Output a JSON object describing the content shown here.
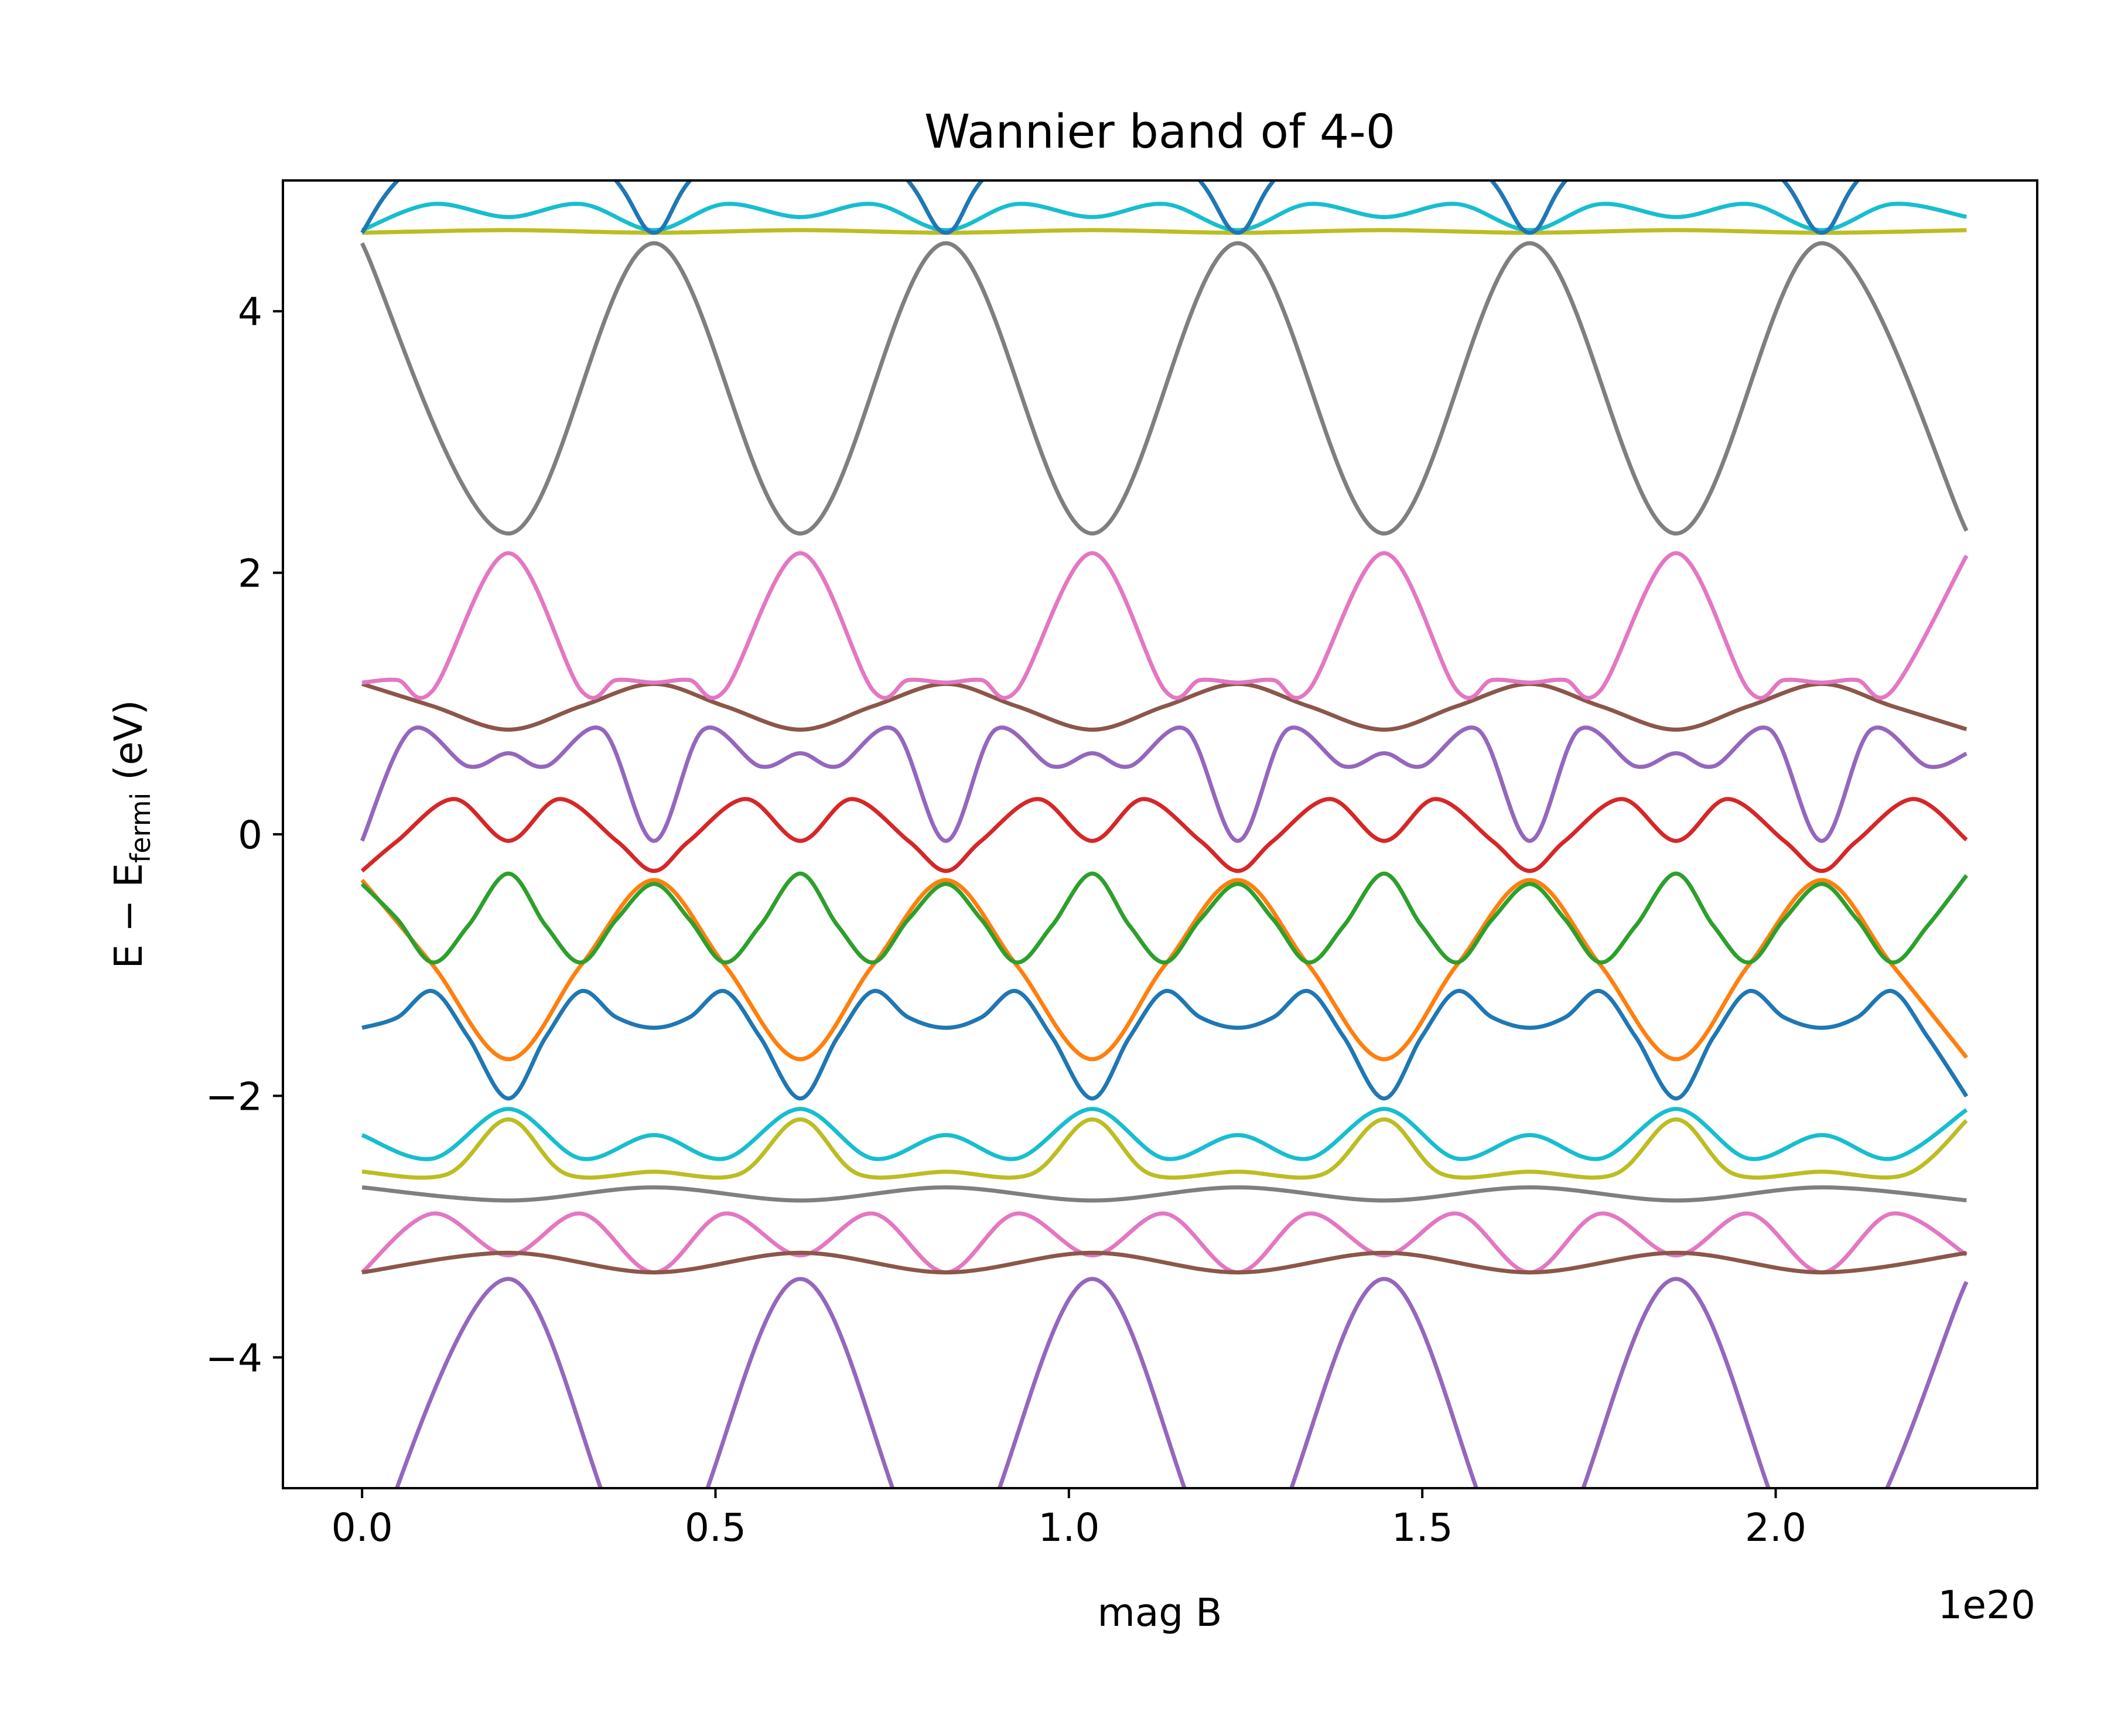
{
  "chart_data": {
    "type": "line",
    "title": "Wannier band of 4-0",
    "xlabel": "mag  B",
    "ylabel": "E − E_fermi (eV)",
    "ylabel_parts": {
      "prefix": "E − E",
      "subscript": "fermi",
      "suffix": " (eV)"
    },
    "x_offset_text": "1e20",
    "xlim": [
      -0.112,
      2.37
    ],
    "ylim": [
      -5,
      5
    ],
    "x_ticks": [
      0.0,
      0.5,
      1.0,
      1.5,
      2.0
    ],
    "x_tick_labels": [
      "0.0",
      "0.5",
      "1.0",
      "1.5",
      "2.0"
    ],
    "y_ticks": [
      -4,
      -2,
      0,
      2,
      4
    ],
    "y_tick_labels": [
      "−4",
      "−2",
      "0",
      "2",
      "4"
    ],
    "grid": false,
    "legend": "none",
    "x_range": [
      0,
      2.27
    ],
    "period": 0.413,
    "colors": {
      "blue": "#1f77b4",
      "orange": "#ff7f0e",
      "green": "#2ca02c",
      "red": "#d62728",
      "purple": "#9467bd",
      "brown": "#8c564b",
      "pink": "#e377c2",
      "gray": "#7f7f7f",
      "olive": "#bcbd22",
      "cyan": "#17becf"
    },
    "series": [
      {
        "color": "#1f77b4",
        "points": [
          [
            0.0,
            -1.48
          ],
          [
            0.05,
            -1.4
          ],
          [
            0.1,
            -1.2
          ],
          [
            0.15,
            -1.55
          ],
          [
            0.207,
            -2.02
          ],
          [
            0.26,
            -1.55
          ],
          [
            0.31,
            -1.2
          ],
          [
            0.36,
            -1.4
          ],
          [
            0.413,
            -1.48
          ]
        ]
      },
      {
        "color": "#ff7f0e",
        "points": [
          [
            0.0,
            -0.35
          ],
          [
            0.1,
            -1.0
          ],
          [
            0.207,
            -1.72
          ],
          [
            0.31,
            -1.0
          ],
          [
            0.413,
            -0.35
          ]
        ]
      },
      {
        "color": "#2ca02c",
        "points": [
          [
            0.0,
            -0.38
          ],
          [
            0.05,
            -0.65
          ],
          [
            0.1,
            -0.98
          ],
          [
            0.15,
            -0.7
          ],
          [
            0.207,
            -0.3
          ],
          [
            0.26,
            -0.7
          ],
          [
            0.31,
            -0.98
          ],
          [
            0.36,
            -0.65
          ],
          [
            0.413,
            -0.38
          ]
        ]
      },
      {
        "color": "#d62728",
        "points": [
          [
            0.0,
            -0.28
          ],
          [
            0.05,
            -0.05
          ],
          [
            0.13,
            0.27
          ],
          [
            0.207,
            -0.05
          ],
          [
            0.28,
            0.27
          ],
          [
            0.36,
            -0.05
          ],
          [
            0.413,
            -0.28
          ]
        ]
      },
      {
        "color": "#9467bd",
        "points": [
          [
            0.0,
            -0.05
          ],
          [
            0.07,
            0.8
          ],
          [
            0.15,
            0.52
          ],
          [
            0.207,
            0.62
          ],
          [
            0.26,
            0.52
          ],
          [
            0.34,
            0.8
          ],
          [
            0.413,
            -0.05
          ]
        ]
      },
      {
        "color": "#8c564b",
        "points": [
          [
            0.0,
            1.15
          ],
          [
            0.1,
            0.98
          ],
          [
            0.207,
            0.8
          ],
          [
            0.31,
            0.98
          ],
          [
            0.413,
            1.15
          ]
        ]
      },
      {
        "color": "#e377c2",
        "points": [
          [
            0.0,
            1.16
          ],
          [
            0.05,
            1.18
          ],
          [
            0.1,
            1.1
          ],
          [
            0.207,
            2.15
          ],
          [
            0.31,
            1.1
          ],
          [
            0.36,
            1.18
          ],
          [
            0.413,
            1.16
          ]
        ]
      },
      {
        "color": "#7f7f7f",
        "points": [
          [
            0.0,
            4.52
          ],
          [
            0.207,
            2.3
          ],
          [
            0.413,
            4.52
          ]
        ]
      },
      {
        "color": "#bcbd22",
        "points": [
          [
            0.0,
            4.6
          ],
          [
            0.207,
            4.62
          ],
          [
            0.413,
            4.6
          ]
        ]
      },
      {
        "color": "#17becf",
        "points": [
          [
            0.0,
            4.62
          ],
          [
            0.1,
            4.82
          ],
          [
            0.207,
            4.72
          ],
          [
            0.31,
            4.82
          ],
          [
            0.413,
            4.62
          ]
        ]
      },
      {
        "color": "#1f77b4",
        "points": [
          [
            0.0,
            4.6
          ],
          [
            0.06,
            5.05
          ],
          [
            0.207,
            5.6
          ],
          [
            0.35,
            5.05
          ],
          [
            0.413,
            4.6
          ]
        ]
      },
      {
        "color": "#17becf",
        "points": [
          [
            0.0,
            -2.3
          ],
          [
            0.1,
            -2.48
          ],
          [
            0.207,
            -2.1
          ],
          [
            0.31,
            -2.48
          ],
          [
            0.413,
            -2.3
          ]
        ]
      },
      {
        "color": "#bcbd22",
        "points": [
          [
            0.0,
            -2.58
          ],
          [
            0.12,
            -2.6
          ],
          [
            0.207,
            -2.18
          ],
          [
            0.29,
            -2.6
          ],
          [
            0.413,
            -2.58
          ]
        ]
      },
      {
        "color": "#7f7f7f",
        "points": [
          [
            0.0,
            -2.7
          ],
          [
            0.207,
            -2.8
          ],
          [
            0.413,
            -2.7
          ]
        ]
      },
      {
        "color": "#e377c2",
        "points": [
          [
            0.0,
            -3.35
          ],
          [
            0.1,
            -2.9
          ],
          [
            0.207,
            -3.22
          ],
          [
            0.31,
            -2.9
          ],
          [
            0.413,
            -3.35
          ]
        ]
      },
      {
        "color": "#8c564b",
        "points": [
          [
            0.0,
            -3.35
          ],
          [
            0.207,
            -3.2
          ],
          [
            0.413,
            -3.35
          ]
        ]
      },
      {
        "color": "#9467bd",
        "points": [
          [
            0.0,
            -5.7
          ],
          [
            0.207,
            -3.4
          ],
          [
            0.413,
            -5.7
          ]
        ]
      }
    ]
  }
}
